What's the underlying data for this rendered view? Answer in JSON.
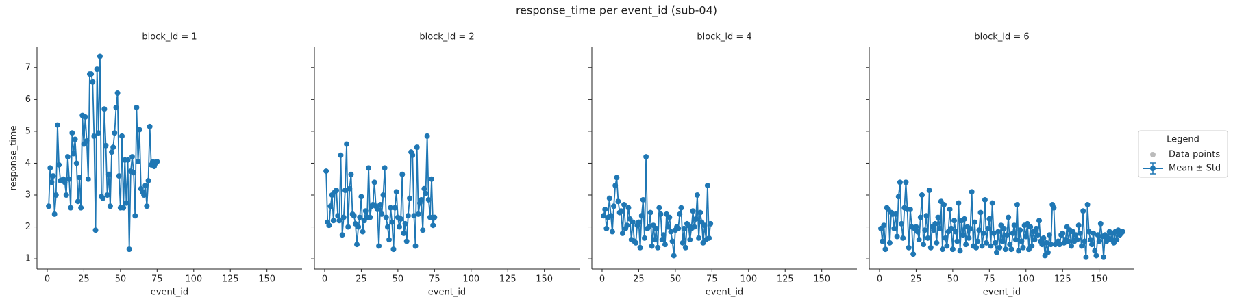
{
  "title": "response_time per event_id (sub-04)",
  "legend": {
    "title": "Legend",
    "entries": [
      {
        "label": "Data points",
        "color": "#bbbbbb"
      },
      {
        "label": "Mean ± Std",
        "color": "#1f77b4"
      }
    ]
  },
  "chart_data": [
    {
      "type": "line",
      "title": "block_id = 1",
      "xlabel": "event_id",
      "ylabel": "response_time",
      "color": "#1f77b4",
      "xlim": [
        -7,
        174
      ],
      "ylim": [
        0.68,
        7.64
      ],
      "xticks": [
        0,
        25,
        50,
        75,
        100,
        125,
        150
      ],
      "yticks": [
        1,
        2,
        3,
        4,
        5,
        6,
        7
      ],
      "x": [
        1,
        2,
        3,
        4,
        5,
        6,
        7,
        8,
        9,
        10,
        11,
        12,
        13,
        14,
        15,
        16,
        17,
        18,
        19,
        20,
        21,
        22,
        23,
        24,
        25,
        26,
        27,
        28,
        29,
        30,
        31,
        32,
        33,
        34,
        35,
        36,
        37,
        38,
        39,
        40,
        41,
        42,
        43,
        44,
        45,
        46,
        47,
        48,
        49,
        50,
        51,
        52,
        53,
        54,
        55,
        56,
        57,
        58,
        59,
        60,
        61,
        62,
        63,
        64,
        65,
        66,
        67,
        68,
        69,
        70,
        71,
        72,
        73,
        74,
        75
      ],
      "values": [
        2.65,
        3.85,
        3.4,
        3.6,
        2.4,
        3.0,
        5.2,
        3.95,
        3.45,
        3.45,
        3.5,
        3.4,
        3.0,
        4.2,
        3.5,
        2.6,
        4.95,
        4.3,
        4.75,
        4.0,
        2.8,
        3.55,
        2.6,
        5.5,
        4.6,
        5.45,
        4.7,
        3.5,
        6.8,
        6.8,
        6.55,
        4.85,
        1.9,
        6.95,
        4.95,
        7.35,
        2.95,
        2.9,
        5.7,
        4.55,
        3.0,
        3.65,
        2.65,
        4.35,
        4.5,
        4.95,
        5.75,
        6.2,
        3.6,
        2.6,
        4.85,
        2.6,
        4.1,
        2.75,
        4.1,
        1.3,
        3.75,
        4.2,
        3.7,
        2.35,
        5.75,
        4.05,
        5.05,
        3.2,
        3.1,
        3.0,
        3.3,
        2.65,
        3.45,
        5.15,
        3.95,
        4.05,
        3.9,
        4.0,
        4.05
      ]
    },
    {
      "type": "line",
      "title": "block_id = 2",
      "xlabel": "event_id",
      "color": "#1f77b4",
      "xlim": [
        -7,
        174
      ],
      "ylim": [
        0.68,
        7.64
      ],
      "xticks": [
        0,
        25,
        50,
        75,
        100,
        125,
        150
      ],
      "yticks": [
        1,
        2,
        3,
        4,
        5,
        6,
        7
      ],
      "x": [
        1,
        2,
        3,
        4,
        5,
        6,
        7,
        8,
        9,
        10,
        11,
        12,
        13,
        14,
        15,
        16,
        17,
        18,
        19,
        20,
        21,
        22,
        23,
        24,
        25,
        26,
        27,
        28,
        29,
        30,
        31,
        32,
        33,
        34,
        35,
        36,
        37,
        38,
        39,
        40,
        41,
        42,
        43,
        44,
        45,
        46,
        47,
        48,
        49,
        50,
        51,
        52,
        53,
        54,
        55,
        56,
        57,
        58,
        59,
        60,
        61,
        62,
        63,
        64,
        65,
        66,
        67,
        68,
        69,
        70,
        71,
        72,
        73,
        74,
        75
      ],
      "values": [
        3.75,
        2.15,
        2.05,
        2.65,
        3.0,
        2.2,
        3.1,
        3.15,
        2.35,
        2.2,
        4.25,
        1.75,
        2.3,
        3.15,
        4.6,
        2.0,
        3.2,
        3.65,
        2.4,
        2.35,
        2.1,
        1.45,
        2.0,
        2.3,
        2.95,
        1.85,
        2.2,
        2.5,
        2.3,
        3.85,
        2.3,
        2.65,
        2.7,
        3.4,
        2.65,
        2.55,
        1.4,
        2.7,
        2.4,
        3.0,
        3.85,
        2.3,
        2.0,
        1.6,
        2.6,
        2.15,
        1.3,
        2.6,
        3.1,
        2.3,
        2.0,
        2.25,
        3.65,
        1.8,
        2.1,
        1.55,
        2.35,
        2.9,
        4.35,
        4.25,
        2.35,
        1.4,
        4.5,
        2.4,
        2.75,
        2.85,
        1.9,
        3.2,
        3.05,
        4.85,
        2.85,
        2.3,
        3.5,
        2.05,
        2.3
      ]
    },
    {
      "type": "line",
      "title": "block_id = 4",
      "xlabel": "event_id",
      "color": "#1f77b4",
      "xlim": [
        -7,
        174
      ],
      "ylim": [
        0.68,
        7.64
      ],
      "xticks": [
        0,
        25,
        50,
        75,
        100,
        125,
        150
      ],
      "yticks": [
        1,
        2,
        3,
        4,
        5,
        6,
        7
      ],
      "x": [
        1,
        2,
        3,
        4,
        5,
        6,
        7,
        8,
        9,
        10,
        11,
        12,
        13,
        14,
        15,
        16,
        17,
        18,
        19,
        20,
        21,
        22,
        23,
        24,
        25,
        26,
        27,
        28,
        29,
        30,
        31,
        32,
        33,
        34,
        35,
        36,
        37,
        38,
        39,
        40,
        41,
        42,
        43,
        44,
        45,
        46,
        47,
        48,
        49,
        50,
        51,
        52,
        53,
        54,
        55,
        56,
        57,
        58,
        59,
        60,
        61,
        62,
        63,
        64,
        65,
        66,
        67,
        68,
        69,
        70,
        71,
        72,
        73,
        74
      ],
      "values": [
        2.35,
        2.55,
        1.95,
        2.3,
        2.9,
        2.35,
        1.85,
        2.65,
        3.3,
        3.55,
        2.8,
        2.45,
        2.5,
        1.8,
        2.7,
        1.95,
        2.05,
        2.6,
        2.25,
        1.6,
        2.15,
        1.55,
        1.5,
        2.05,
        2.15,
        1.35,
        2.35,
        2.85,
        1.65,
        4.2,
        1.95,
        2.0,
        2.45,
        1.4,
        2.05,
        1.6,
        1.95,
        1.35,
        2.6,
        2.4,
        1.6,
        1.75,
        1.45,
        2.4,
        2.0,
        2.3,
        1.85,
        1.55,
        1.1,
        1.9,
        2.0,
        1.95,
        2.4,
        2.6,
        1.5,
        1.95,
        1.35,
        2.1,
        2.05,
        1.6,
        1.95,
        2.5,
        2.0,
        2.25,
        3.0,
        1.65,
        2.45,
        2.15,
        1.5,
        2.05,
        1.6,
        3.3,
        1.65,
        2.1
      ]
    },
    {
      "type": "line",
      "title": "block_id = 6",
      "xlabel": "event_id",
      "color": "#1f77b4",
      "xlim": [
        -7,
        174
      ],
      "ylim": [
        0.68,
        7.64
      ],
      "xticks": [
        0,
        25,
        50,
        75,
        100,
        125,
        150
      ],
      "yticks": [
        1,
        2,
        3,
        4,
        5,
        6,
        7
      ],
      "x": [
        1,
        2,
        3,
        4,
        5,
        6,
        7,
        8,
        9,
        10,
        11,
        12,
        13,
        14,
        15,
        16,
        17,
        18,
        19,
        20,
        21,
        22,
        23,
        24,
        25,
        26,
        27,
        28,
        29,
        30,
        31,
        32,
        33,
        34,
        35,
        36,
        37,
        38,
        39,
        40,
        41,
        42,
        43,
        44,
        45,
        46,
        47,
        48,
        49,
        50,
        51,
        52,
        53,
        54,
        55,
        56,
        57,
        58,
        59,
        60,
        61,
        62,
        63,
        64,
        65,
        66,
        67,
        68,
        69,
        70,
        71,
        72,
        73,
        74,
        75,
        76,
        77,
        78,
        79,
        80,
        81,
        82,
        83,
        84,
        85,
        86,
        87,
        88,
        89,
        90,
        91,
        92,
        93,
        94,
        95,
        96,
        97,
        98,
        99,
        100,
        101,
        102,
        103,
        104,
        105,
        106,
        107,
        108,
        109,
        110,
        111,
        112,
        113,
        114,
        115,
        116,
        117,
        118,
        119,
        120,
        121,
        122,
        123,
        124,
        125,
        126,
        127,
        128,
        129,
        130,
        131,
        132,
        133,
        134,
        135,
        136,
        137,
        138,
        139,
        140,
        141,
        142,
        143,
        144,
        145,
        146,
        147,
        148,
        149,
        150,
        151,
        152,
        153,
        154,
        155,
        156,
        157,
        158,
        159,
        160,
        161,
        162,
        163,
        164,
        165,
        166
      ],
      "values": [
        1.95,
        1.55,
        2.05,
        1.3,
        2.6,
        2.55,
        1.5,
        2.45,
        2.4,
        1.95,
        2.4,
        1.7,
        2.95,
        3.4,
        2.1,
        1.65,
        2.6,
        3.4,
        2.55,
        1.35,
        2.55,
        2.0,
        1.15,
        1.95,
        2.0,
        1.85,
        1.6,
        2.3,
        3.0,
        1.45,
        1.9,
        2.35,
        1.65,
        3.15,
        1.35,
        2.0,
        1.9,
        2.1,
        1.5,
        2.3,
        1.95,
        2.8,
        1.3,
        2.7,
        1.65,
        1.4,
        1.85,
        2.55,
        1.95,
        1.3,
        2.2,
        1.85,
        1.55,
        2.75,
        1.25,
        2.2,
        1.75,
        2.25,
        1.45,
        2.0,
        1.65,
        1.95,
        3.1,
        1.4,
        2.15,
        1.35,
        1.55,
        1.9,
        2.45,
        1.4,
        1.8,
        2.85,
        1.5,
        1.95,
        2.25,
        1.4,
        2.75,
        1.8,
        1.5,
        1.2,
        1.85,
        1.35,
        2.05,
        1.55,
        1.95,
        1.3,
        1.75,
        2.3,
        1.45,
        1.3,
        1.8,
        2.05,
        1.6,
        2.7,
        1.25,
        1.9,
        1.55,
        1.35,
        2.05,
        1.7,
        2.1,
        1.3,
        2.0,
        1.4,
        1.85,
        1.6,
        1.95,
        1.75,
        2.2,
        1.55,
        1.45,
        1.65,
        1.1,
        1.5,
        1.2,
        1.75,
        1.45,
        2.7,
        2.6,
        1.45,
        1.5,
        1.55,
        1.45,
        1.75,
        1.8,
        1.5,
        1.6,
        2.0,
        1.55,
        1.9,
        1.4,
        1.85,
        1.55,
        1.75,
        1.6,
        2.05,
        1.8,
        1.4,
        2.5,
        1.55,
        1.05,
        2.7,
        1.85,
        1.6,
        1.45,
        1.8,
        1.25,
        1.1,
        1.75,
        1.55,
        2.1,
        1.7,
        1.05,
        1.75,
        1.55,
        1.65,
        1.85,
        1.6,
        1.8,
        1.5,
        1.85,
        1.6,
        1.9,
        1.75,
        1.8,
        1.85
      ]
    }
  ]
}
